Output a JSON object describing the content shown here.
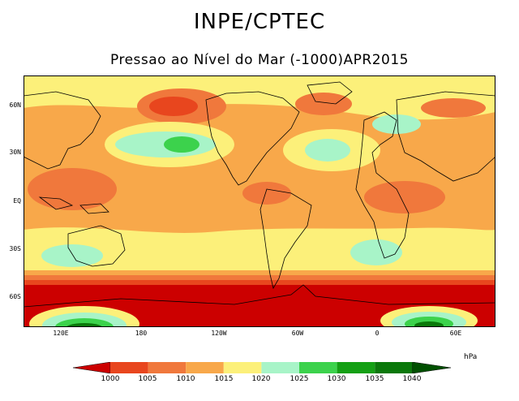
{
  "title": "INPE/CPTEC",
  "subtitle": "Pressao ao Nível do Mar (-1000)APR2015",
  "lat_labels": [
    "60N",
    "30N",
    "EQ",
    "30S",
    "60S"
  ],
  "lon_labels": [
    "120E",
    "180",
    "120W",
    "60W",
    "0",
    "60E"
  ],
  "legend": {
    "unit": "hPa",
    "levels": [
      "1000",
      "1005",
      "1010",
      "1015",
      "1020",
      "1025",
      "1030",
      "1035",
      "1040"
    ],
    "colors": [
      "#cc0000",
      "#e8461e",
      "#f0783c",
      "#f8a84a",
      "#fcf07a",
      "#a8f4c8",
      "#3cd24c",
      "#14a014",
      "#0a780a",
      "#005000"
    ]
  }
}
